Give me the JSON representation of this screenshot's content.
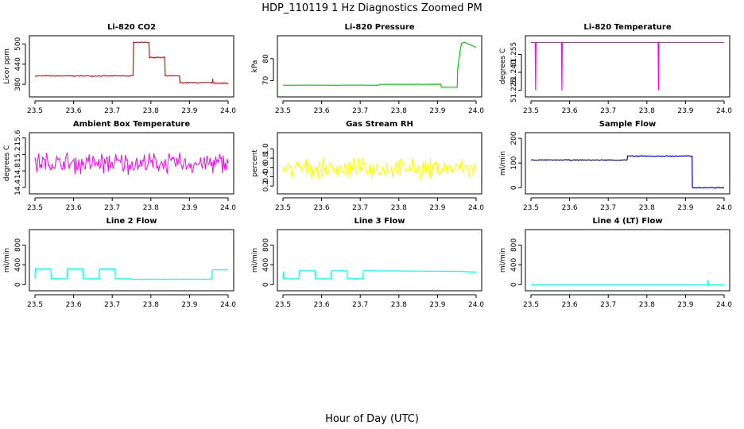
{
  "title": "HDP_110119  1 Hz Diagnostics Zoomed PM",
  "xlabel": "Hour of Day (UTC)",
  "chart_data": [
    {
      "type": "line",
      "title": "Li-820 CO2",
      "ylabel": "Licor ppm",
      "xlim": [
        23.5,
        24.0
      ],
      "ylim": [
        352,
        515
      ],
      "xticks": [
        23.5,
        23.6,
        23.7,
        23.8,
        23.9,
        24.0
      ],
      "yticks": [
        380,
        440,
        500
      ],
      "ytick_labels": [
        "380",
        "440",
        "500"
      ],
      "color": "#ff0000",
      "noise": 1.5,
      "series": [
        {
          "x": [
            23.5,
            23.754,
            23.755,
            23.795,
            23.796,
            23.836,
            23.837,
            23.874,
            23.875,
            23.959,
            23.96,
            23.961,
            23.962,
            24.0
          ],
          "y": [
            405,
            405,
            505,
            505,
            460,
            460,
            405,
            405,
            385,
            385,
            397,
            385,
            384,
            383
          ]
        }
      ]
    },
    {
      "type": "line",
      "title": "Li-820 Pressure",
      "ylabel": "kPa",
      "xlim": [
        23.5,
        24.0
      ],
      "ylim": [
        64,
        89
      ],
      "xticks": [
        23.5,
        23.6,
        23.7,
        23.8,
        23.9,
        24.0
      ],
      "yticks": [
        70,
        80
      ],
      "ytick_labels": [
        "70",
        "80"
      ],
      "color": "#00cc00",
      "noise": 0.08,
      "series": [
        {
          "x": [
            23.5,
            23.749,
            23.75,
            23.909,
            23.91,
            23.951,
            23.952,
            23.958,
            23.962,
            23.97,
            24.0
          ],
          "y": [
            67.9,
            67.9,
            68.3,
            68.3,
            67.0,
            67.0,
            75,
            83,
            87,
            87.5,
            85.2
          ]
        }
      ]
    },
    {
      "type": "line",
      "title": "Li-820 Temperature",
      "ylabel": "degrees C",
      "xlim": [
        23.5,
        24.0
      ],
      "ylim": [
        51.222,
        51.268
      ],
      "xticks": [
        23.5,
        23.6,
        23.7,
        23.8,
        23.9,
        24.0
      ],
      "yticks": [
        51.225,
        51.24,
        51.255
      ],
      "ytick_labels": [
        "51.225",
        "51.240",
        "51.255"
      ],
      "color": "#ff00ff",
      "noise": 0,
      "series": [
        {
          "x": [
            23.5,
            23.511,
            23.512,
            23.513,
            23.579,
            23.58,
            23.581,
            23.829,
            23.83,
            23.831,
            24.0
          ],
          "y": [
            51.265,
            51.265,
            51.225,
            51.265,
            51.265,
            51.225,
            51.265,
            51.265,
            51.225,
            51.265,
            51.265
          ]
        }
      ]
    },
    {
      "type": "line",
      "title": "Ambient Box Temperature",
      "ylabel": "degrees C",
      "xlim": [
        23.5,
        24.0
      ],
      "ylim": [
        14.32,
        15.65
      ],
      "xticks": [
        23.5,
        23.6,
        23.7,
        23.8,
        23.9,
        24.0
      ],
      "yticks": [
        14.4,
        14.8,
        15.2,
        15.6
      ],
      "ytick_labels": [
        "14.4",
        "14.8",
        "15.2",
        "15.6"
      ],
      "color": "#ff00ff",
      "noise": 0.28,
      "series": [
        {
          "x": [
            23.5,
            24.0
          ],
          "y": [
            14.98,
            14.98
          ]
        }
      ]
    },
    {
      "type": "line",
      "title": "Gas Stream RH",
      "ylabel": "percent",
      "xlim": [
        23.5,
        24.0
      ],
      "ylim": [
        0.1,
        1.28
      ],
      "xticks": [
        23.5,
        23.6,
        23.7,
        23.8,
        23.9,
        24.0
      ],
      "yticks": [
        0.2,
        0.4,
        0.6,
        0.8,
        1.0
      ],
      "ytick_labels": [
        "0.2",
        "0.4",
        "0.6",
        "0.8",
        "1.0"
      ],
      "color": "#ffff00",
      "noise": 0.24,
      "series": [
        {
          "x": [
            23.5,
            24.0
          ],
          "y": [
            0.58,
            0.58
          ]
        }
      ]
    },
    {
      "type": "line",
      "title": "Sample Flow",
      "ylabel": "ml/min",
      "xlim": [
        23.5,
        24.0
      ],
      "ylim": [
        -12,
        210
      ],
      "xticks": [
        23.5,
        23.6,
        23.7,
        23.8,
        23.9,
        24.0
      ],
      "yticks": [
        0,
        100,
        200
      ],
      "ytick_labels": [
        "0",
        "100",
        "200"
      ],
      "color": "#0000cc",
      "noise": 2,
      "series": [
        {
          "x": [
            23.5,
            23.749,
            23.75,
            23.917,
            23.918,
            24.0
          ],
          "y": [
            112,
            112,
            128,
            128,
            0,
            0
          ]
        }
      ]
    },
    {
      "type": "line",
      "title": "Line 2 Flow",
      "ylabel": "ml/min",
      "xlim": [
        23.5,
        24.0
      ],
      "ylim": [
        -60,
        1050
      ],
      "xticks": [
        23.5,
        23.6,
        23.7,
        23.8,
        23.9,
        24.0
      ],
      "yticks": [
        0,
        400,
        800
      ],
      "ytick_labels": [
        "0",
        "400",
        "800"
      ],
      "color": "#00ffff",
      "noise": 4,
      "series": [
        {
          "x": [
            23.5,
            23.501,
            23.541,
            23.542,
            23.583,
            23.584,
            23.624,
            23.625,
            23.666,
            23.667,
            23.707,
            23.708,
            23.749,
            23.75,
            23.958,
            23.959,
            24.0
          ],
          "y": [
            120,
            320,
            320,
            120,
            120,
            320,
            320,
            120,
            120,
            320,
            320,
            120,
            120,
            110,
            110,
            300,
            300
          ]
        }
      ]
    },
    {
      "type": "line",
      "title": "Line 3 Flow",
      "ylabel": "ml/min",
      "xlim": [
        23.5,
        24.0
      ],
      "ylim": [
        -60,
        1050
      ],
      "xticks": [
        23.5,
        23.6,
        23.7,
        23.8,
        23.9,
        24.0
      ],
      "yticks": [
        0,
        400,
        800
      ],
      "ytick_labels": [
        "0",
        "400",
        "800"
      ],
      "color": "#00ffff",
      "noise": 4,
      "series": [
        {
          "x": [
            23.5,
            23.501,
            23.502,
            23.541,
            23.542,
            23.583,
            23.584,
            23.624,
            23.625,
            23.666,
            23.667,
            23.707,
            23.708,
            23.96,
            24.0
          ],
          "y": [
            120,
            260,
            120,
            120,
            280,
            280,
            120,
            120,
            280,
            280,
            120,
            120,
            280,
            270,
            255
          ]
        }
      ]
    },
    {
      "type": "line",
      "title": "Line 4 (LT) Flow",
      "ylabel": "ml/min",
      "xlim": [
        23.5,
        24.0
      ],
      "ylim": [
        -60,
        1050
      ],
      "xticks": [
        23.5,
        23.6,
        23.7,
        23.8,
        23.9,
        24.0
      ],
      "yticks": [
        0,
        400,
        800
      ],
      "ytick_labels": [
        "0",
        "400",
        "800"
      ],
      "color": "#00ffff",
      "noise": 0,
      "series": [
        {
          "x": [
            23.5,
            23.957,
            23.958,
            23.959,
            23.96,
            24.0
          ],
          "y": [
            0,
            0,
            90,
            0,
            0,
            0
          ]
        }
      ]
    }
  ]
}
